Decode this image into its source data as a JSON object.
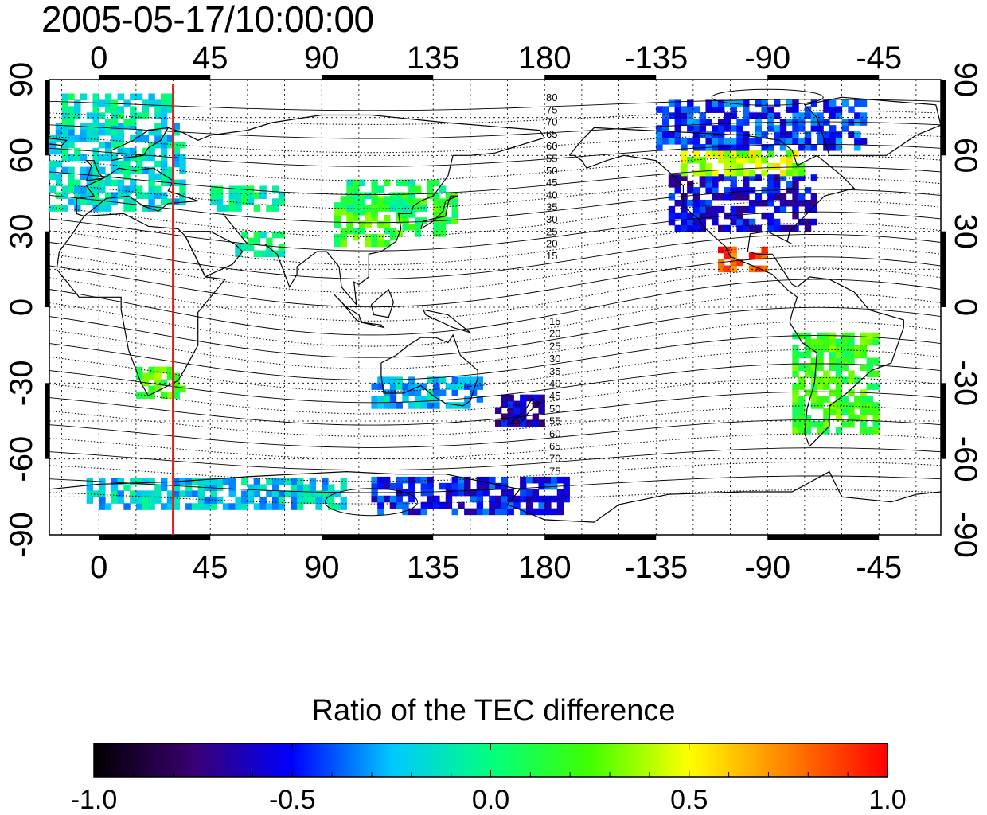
{
  "title": "2005-05-17/10:00:00",
  "axes": {
    "lon_ticks_top": [
      "0",
      "45",
      "90",
      "135",
      "180",
      "-135",
      "-90",
      "-45"
    ],
    "lon_ticks_bottom": [
      "0",
      "45",
      "90",
      "135",
      "180",
      "-135",
      "-90",
      "-45"
    ],
    "lat_ticks_left": [
      "90",
      "60",
      "30",
      "0",
      "-30",
      "-60",
      "-90"
    ],
    "lat_ticks_right": [
      "90",
      "60",
      "30",
      "0",
      "-30",
      "-60",
      "-90"
    ],
    "lon_range": [
      -20,
      340
    ],
    "lat_range": [
      -90,
      90
    ]
  },
  "marker_line": {
    "longitude": 30,
    "color": "#e0201c"
  },
  "contour_labels_north": [
    "80",
    "75",
    "70",
    "65",
    "60",
    "55",
    "50",
    "45",
    "40",
    "35",
    "30",
    "25",
    "20",
    "15"
  ],
  "contour_labels_south": [
    "15",
    "20",
    "25",
    "30",
    "35",
    "40",
    "45",
    "50",
    "55",
    "60",
    "65",
    "70",
    "75"
  ],
  "colorbar": {
    "title": "Ratio of the TEC difference",
    "min": -1.0,
    "max": 1.0,
    "tick_labels": [
      "-1.0",
      "-0.5",
      "0.0",
      "0.5",
      "1.0"
    ],
    "colors": [
      "#000000",
      "#3a0070",
      "#0000ff",
      "#00c8ff",
      "#00ff7f",
      "#40ff00",
      "#ffff00",
      "#ff8000",
      "#ff0000"
    ]
  },
  "chart_data": {
    "type": "heatmap",
    "title": "2005-05-17/10:00:00",
    "xlabel": "",
    "ylabel": "",
    "xlim": [
      -20,
      340
    ],
    "ylim": [
      -90,
      90
    ],
    "value_range": [
      -1.0,
      1.0
    ],
    "regions": [
      {
        "lon": [
          -20,
          35
        ],
        "lat": [
          38,
          72
        ],
        "value": -0.15
      },
      {
        "lon": [
          -15,
          30
        ],
        "lat": [
          72,
          84
        ],
        "value": -0.1
      },
      {
        "lon": [
          45,
          75
        ],
        "lat": [
          38,
          48
        ],
        "value": -0.05
      },
      {
        "lon": [
          55,
          75
        ],
        "lat": [
          20,
          28
        ],
        "value": -0.05
      },
      {
        "lon": [
          95,
          120
        ],
        "lat": [
          24,
          42
        ],
        "value": 0.2
      },
      {
        "lon": [
          120,
          145
        ],
        "lat": [
          28,
          45
        ],
        "value": 0.15
      },
      {
        "lon": [
          100,
          140
        ],
        "lat": [
          38,
          50
        ],
        "value": 0.05
      },
      {
        "lon": [
          15,
          35
        ],
        "lat": [
          -36,
          -25
        ],
        "value": 0.25
      },
      {
        "lon": [
          110,
          155
        ],
        "lat": [
          -40,
          -28
        ],
        "value": -0.25
      },
      {
        "lon": [
          160,
          178
        ],
        "lat": [
          -47,
          -35
        ],
        "value": -0.6
      },
      {
        "lon": [
          230,
          290
        ],
        "lat": [
          30,
          52
        ],
        "value": -0.55
      },
      {
        "lon": [
          235,
          285
        ],
        "lat": [
          52,
          62
        ],
        "value": 0.4
      },
      {
        "lon": [
          225,
          310
        ],
        "lat": [
          62,
          82
        ],
        "value": -0.45
      },
      {
        "lon": [
          250,
          270
        ],
        "lat": [
          14,
          24
        ],
        "value": 0.85
      },
      {
        "lon": [
          280,
          315
        ],
        "lat": [
          -50,
          -10
        ],
        "value": 0.2
      },
      {
        "lon": [
          -5,
          100
        ],
        "lat": [
          -80,
          -68
        ],
        "value": -0.2
      },
      {
        "lon": [
          110,
          190
        ],
        "lat": [
          -82,
          -68
        ],
        "value": -0.5
      }
    ]
  }
}
